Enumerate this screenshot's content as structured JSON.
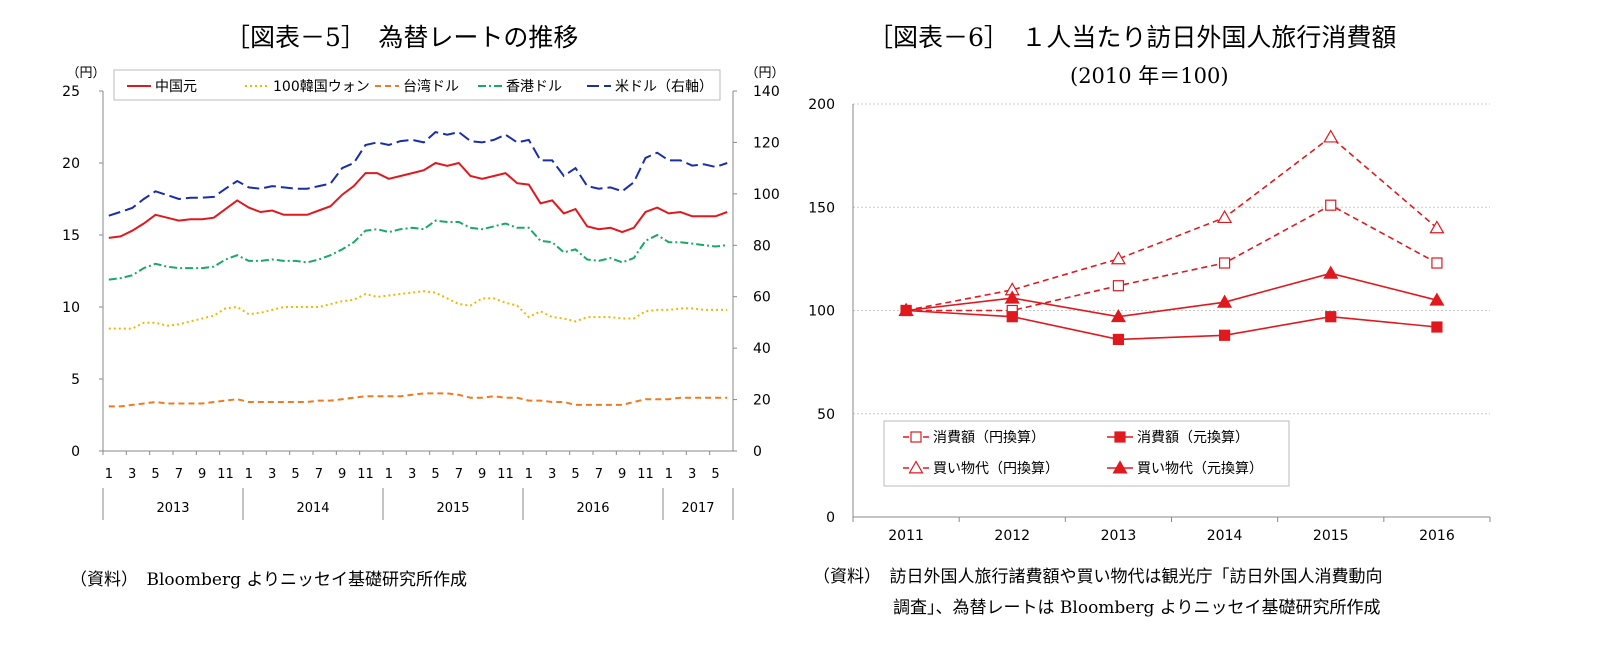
{
  "figure5": {
    "title": "［図表－5］　為替レートの推移",
    "source": "（資料）　Bloomberg よりニッセイ基礎研究所作成"
  },
  "figure6": {
    "title": "［図表－6］　１人当たり訪日外国人旅行消費額",
    "subtitle": "(2010 年＝100)",
    "source_line1": "（資料）　訪日外国人旅行諸費額や買い物代は観光庁「訪日外国人消費動向",
    "source_line2": "調査」、為替レートは Bloomberg よりニッセイ基礎研究所作成"
  },
  "chart_data": [
    {
      "type": "line",
      "title": "［図表－5］　為替レートの推移",
      "left_unit": "（円）",
      "right_unit": "（円）",
      "ylim": [
        0,
        25
      ],
      "yticks": [
        0,
        5,
        10,
        15,
        20,
        25
      ],
      "y2lim": [
        0,
        140
      ],
      "y2ticks": [
        0,
        20,
        40,
        60,
        80,
        100,
        120,
        140
      ],
      "x_month_ticks": [
        "1",
        "3",
        "5",
        "7",
        "9",
        "11",
        "1",
        "3",
        "5",
        "7",
        "9",
        "11",
        "1",
        "3",
        "5",
        "7",
        "9",
        "11",
        "1",
        "3",
        "5",
        "7",
        "9",
        "11",
        "1",
        "3",
        "5"
      ],
      "year_labels": [
        "2013",
        "2014",
        "2015",
        "2016",
        "2017"
      ],
      "grid": false,
      "legend_position": "top",
      "series": [
        {
          "name": "中国元",
          "axis": "left",
          "color": "#e0191e",
          "dash": "solid",
          "values": [
            14.8,
            14.9,
            15.3,
            15.8,
            16.4,
            16.2,
            16.0,
            16.1,
            16.1,
            16.2,
            16.8,
            17.4,
            16.9,
            16.6,
            16.7,
            16.4,
            16.4,
            16.4,
            16.7,
            17.0,
            17.8,
            18.4,
            19.3,
            19.3,
            18.9,
            19.1,
            19.3,
            19.5,
            20.0,
            19.8,
            20.0,
            19.1,
            18.9,
            19.1,
            19.3,
            18.6,
            18.5,
            17.2,
            17.4,
            16.5,
            16.8,
            15.6,
            15.4,
            15.5,
            15.2,
            15.5,
            16.6,
            16.9,
            16.5,
            16.6,
            16.3,
            16.3,
            16.3,
            16.6
          ]
        },
        {
          "name": "100韓国ウォン",
          "axis": "left",
          "color": "#f0b800",
          "dash": "dotted",
          "values": [
            8.5,
            8.5,
            8.5,
            8.9,
            8.9,
            8.7,
            8.8,
            9.0,
            9.2,
            9.4,
            9.9,
            10.0,
            9.5,
            9.6,
            9.8,
            10.0,
            10.0,
            10.0,
            10.0,
            10.2,
            10.4,
            10.5,
            10.9,
            10.7,
            10.8,
            10.9,
            11.0,
            11.1,
            11.0,
            10.6,
            10.2,
            10.1,
            10.6,
            10.6,
            10.3,
            10.1,
            9.3,
            9.7,
            9.3,
            9.2,
            9.0,
            9.3,
            9.3,
            9.3,
            9.2,
            9.2,
            9.7,
            9.8,
            9.8,
            9.9,
            9.9,
            9.8,
            9.8,
            9.8
          ]
        },
        {
          "name": "台湾ドル",
          "axis": "left",
          "color": "#f07a1e",
          "dash": "dashed",
          "values": [
            3.1,
            3.1,
            3.2,
            3.3,
            3.4,
            3.3,
            3.3,
            3.3,
            3.3,
            3.4,
            3.5,
            3.6,
            3.4,
            3.4,
            3.4,
            3.4,
            3.4,
            3.4,
            3.5,
            3.5,
            3.6,
            3.7,
            3.8,
            3.8,
            3.8,
            3.8,
            3.9,
            4.0,
            4.0,
            4.0,
            3.9,
            3.7,
            3.7,
            3.8,
            3.7,
            3.7,
            3.5,
            3.5,
            3.4,
            3.4,
            3.2,
            3.2,
            3.2,
            3.2,
            3.2,
            3.4,
            3.6,
            3.6,
            3.6,
            3.7,
            3.7,
            3.7,
            3.7,
            3.7
          ]
        },
        {
          "name": "香港ドル",
          "axis": "left",
          "color": "#1aa868",
          "dash": "dashdot",
          "values": [
            11.9,
            12.0,
            12.2,
            12.7,
            13.0,
            12.8,
            12.7,
            12.7,
            12.7,
            12.8,
            13.3,
            13.6,
            13.2,
            13.2,
            13.3,
            13.2,
            13.2,
            13.1,
            13.3,
            13.6,
            14.0,
            14.5,
            15.3,
            15.4,
            15.2,
            15.4,
            15.5,
            15.4,
            16.0,
            15.9,
            15.9,
            15.5,
            15.4,
            15.6,
            15.8,
            15.5,
            15.5,
            14.6,
            14.5,
            13.8,
            14.0,
            13.3,
            13.2,
            13.4,
            13.1,
            13.4,
            14.6,
            15.0,
            14.5,
            14.5,
            14.4,
            14.3,
            14.2,
            14.3
          ]
        },
        {
          "name": "米ドル（右軸）",
          "axis": "right",
          "color": "#1a2ea8",
          "dash": "longdash",
          "values": [
            91.5,
            93.0,
            94.5,
            98.0,
            101.0,
            99.5,
            98.0,
            98.5,
            98.5,
            98.8,
            102.0,
            105.0,
            102.5,
            102.0,
            103.0,
            102.5,
            102.0,
            102.0,
            103.0,
            104.0,
            110.0,
            112.0,
            119.0,
            120.0,
            119.0,
            120.5,
            121.0,
            120.0,
            124.0,
            123.0,
            124.0,
            120.5,
            120.0,
            121.0,
            123.0,
            120.0,
            121.0,
            113.0,
            113.0,
            107.0,
            110.0,
            103.0,
            102.0,
            102.5,
            101.0,
            104.5,
            114.0,
            116.0,
            113.0,
            113.0,
            111.0,
            111.5,
            110.5,
            112.0
          ]
        }
      ]
    },
    {
      "type": "line",
      "title": "［図表－6］　１人当たり訪日外国人旅行消費額",
      "subtitle": "(2010 年＝100)",
      "categories": [
        "2011",
        "2012",
        "2013",
        "2014",
        "2015",
        "2016"
      ],
      "ylim": [
        0,
        200
      ],
      "yticks": [
        0,
        50,
        100,
        150,
        200
      ],
      "grid": true,
      "legend_position": "bottom-left",
      "series": [
        {
          "name": "消費額（円換算）",
          "color": "#e0191e",
          "dash": "dashed",
          "marker": "open-square",
          "values": [
            100,
            100,
            112,
            123,
            151,
            123
          ]
        },
        {
          "name": "消費額（元換算）",
          "color": "#e0191e",
          "dash": "solid",
          "marker": "filled-square",
          "values": [
            100,
            97,
            86,
            88,
            97,
            92
          ]
        },
        {
          "name": "買い物代（円換算）",
          "color": "#e0191e",
          "dash": "dashed",
          "marker": "open-triangle",
          "values": [
            100,
            110,
            125,
            145,
            184,
            140
          ]
        },
        {
          "name": "買い物代（元換算）",
          "color": "#e0191e",
          "dash": "solid",
          "marker": "filled-triangle",
          "values": [
            100,
            106,
            97,
            104,
            118,
            105
          ]
        }
      ]
    }
  ]
}
